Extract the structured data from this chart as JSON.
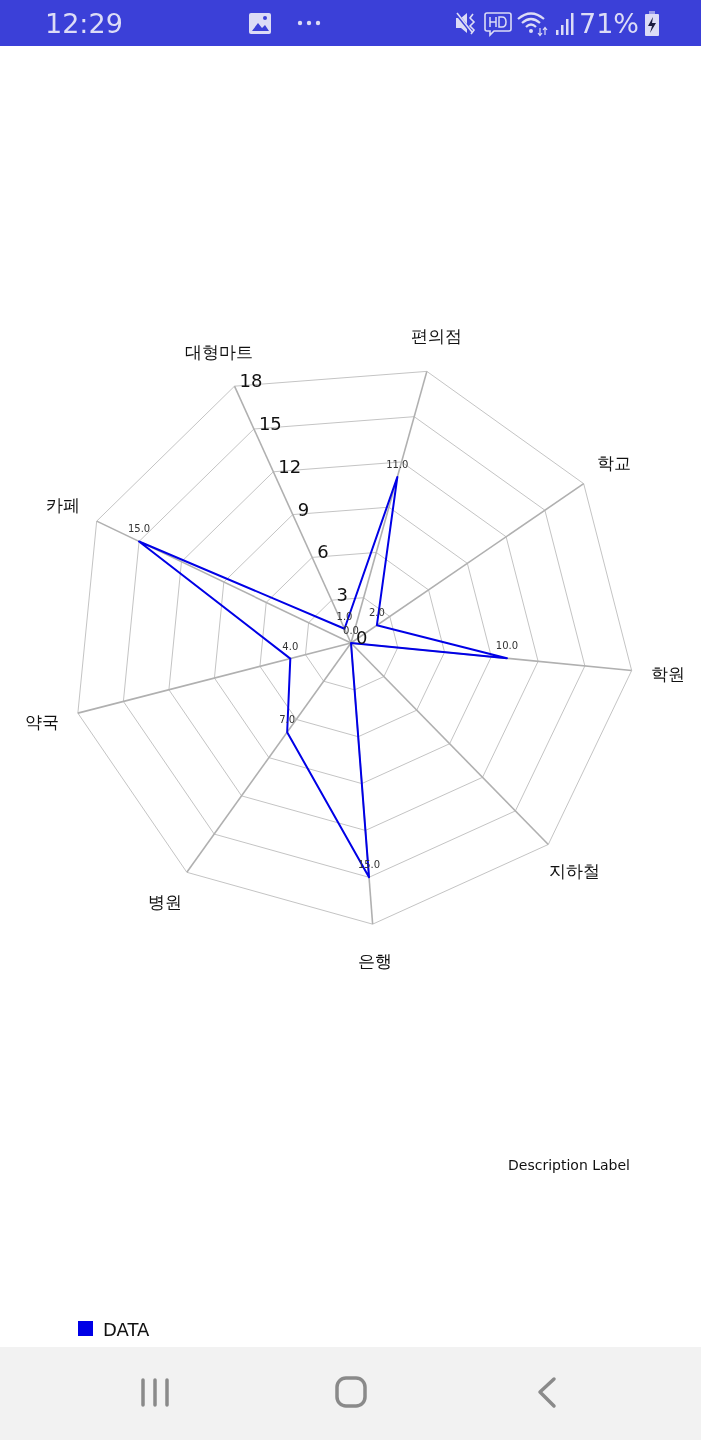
{
  "chart_data": {
    "type": "radar",
    "categories": [
      "편의점",
      "학교",
      "학원",
      "지하철",
      "은행",
      "병원",
      "약국",
      "카페",
      "대형마트"
    ],
    "series": [
      {
        "name": "DATA",
        "color": "#0000e6",
        "values": [
          11,
          2,
          10,
          0,
          15,
          7,
          4,
          15,
          1
        ],
        "value_labels": [
          "11.0",
          "2.0",
          "10.0",
          "0.0",
          "15.0",
          "7.0",
          "4.0",
          "15.0",
          "1.0"
        ]
      }
    ],
    "ylim": [
      0,
      18
    ],
    "yticks": [
      0,
      3,
      6,
      9,
      12,
      15,
      18
    ],
    "grid": true,
    "legend": "bottom left",
    "annotations": [
      "Description Label",
      "12:29",
      "71%"
    ]
  }
}
